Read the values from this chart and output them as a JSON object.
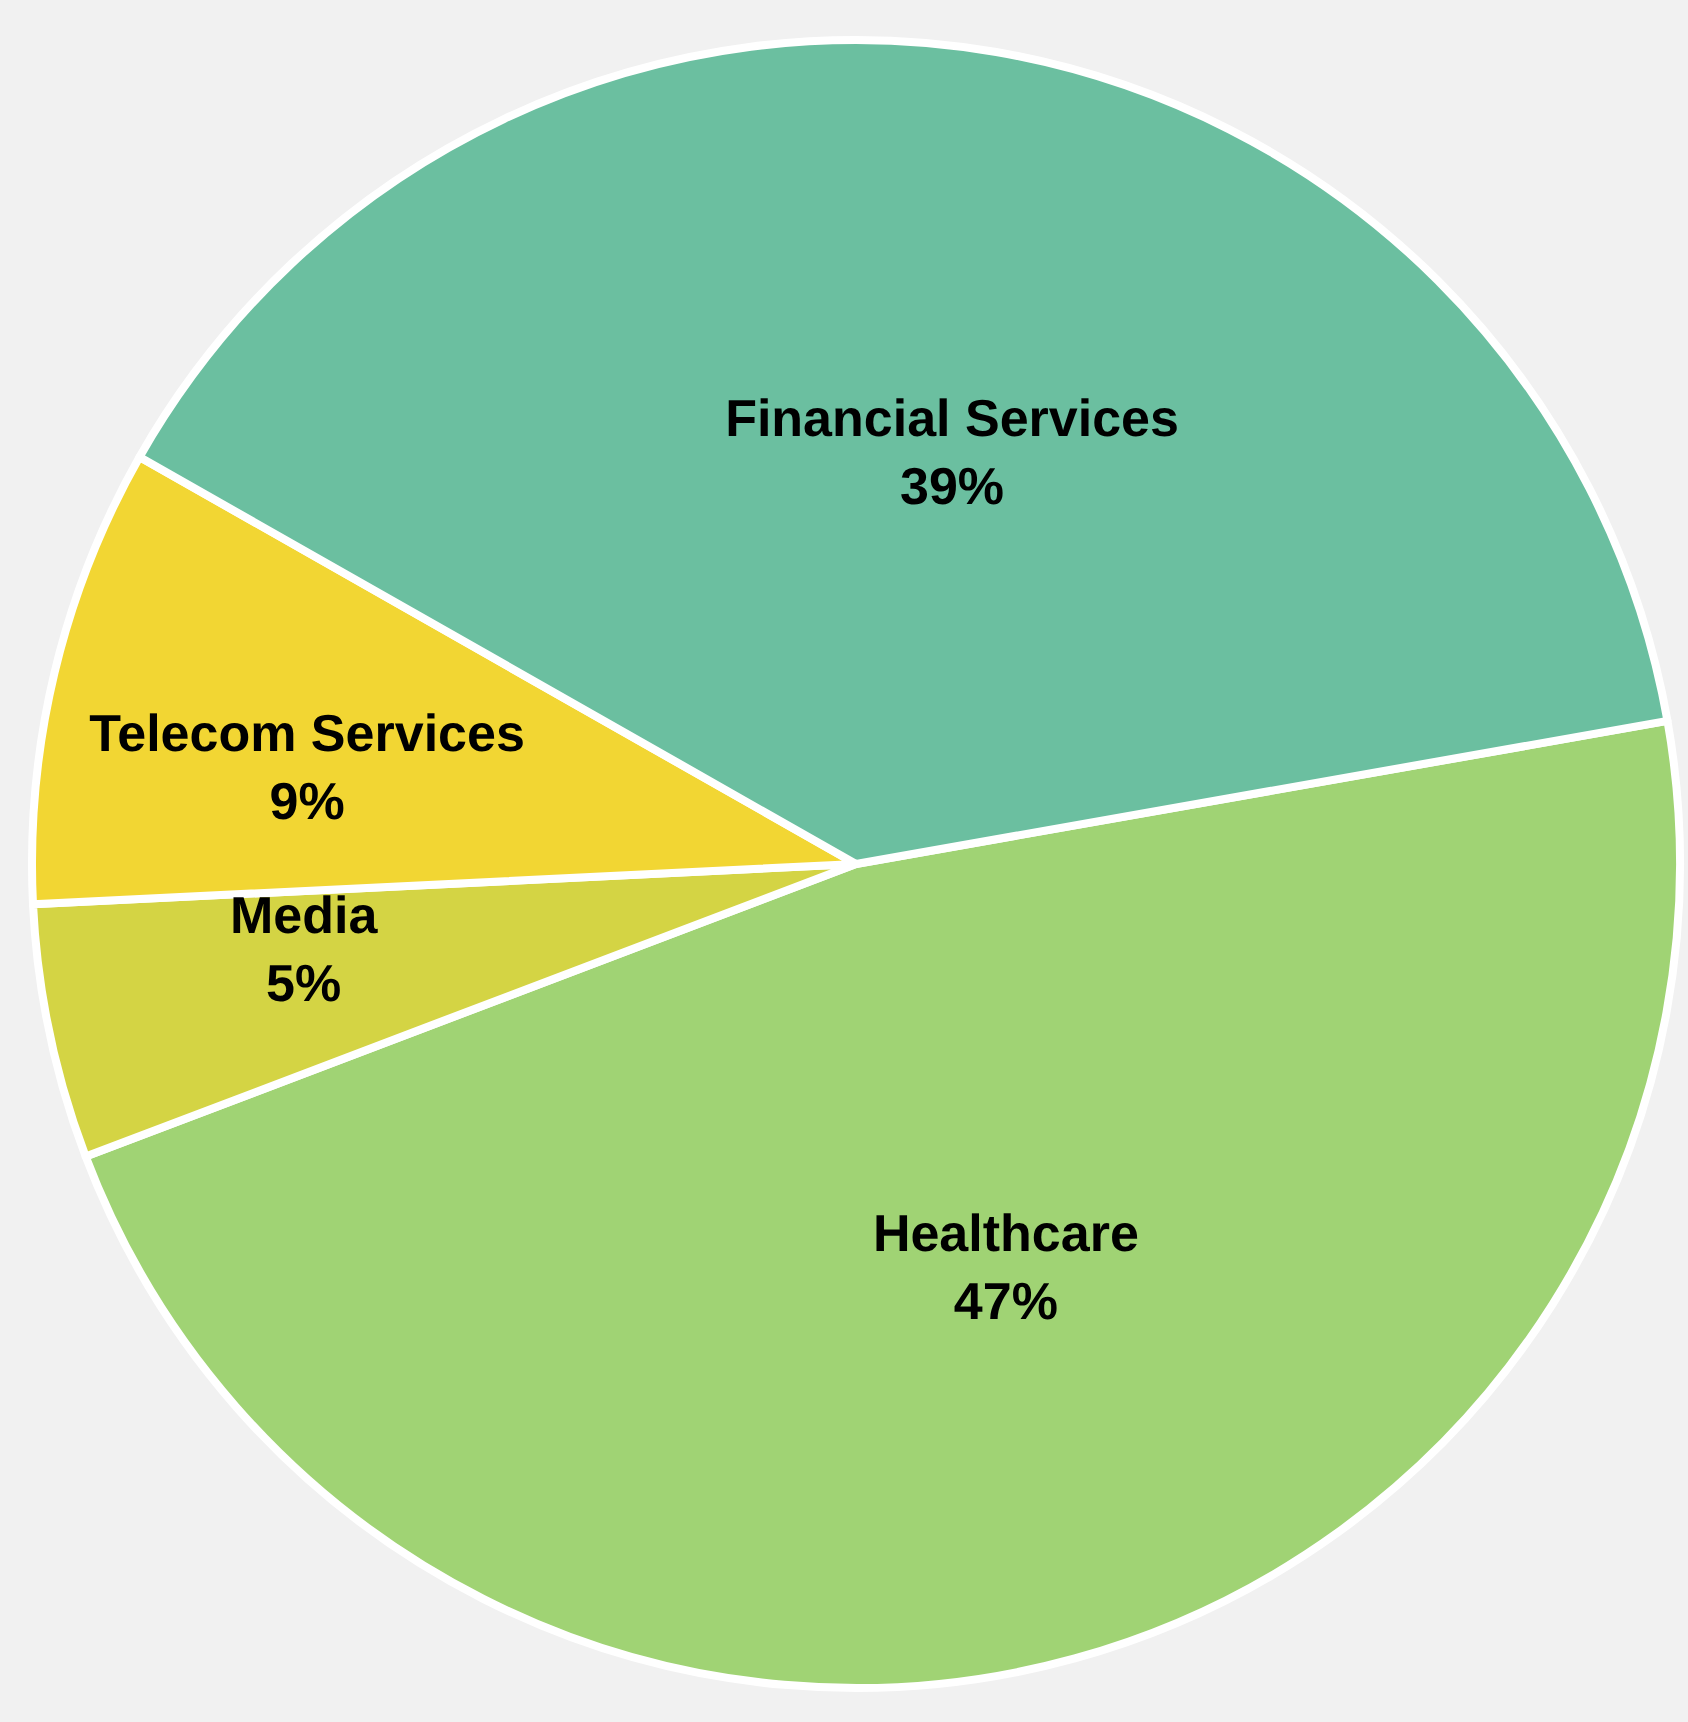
{
  "chart_data": {
    "type": "pie",
    "categories": [
      "Healthcare",
      "Media",
      "Telecom Services",
      "Financial Services"
    ],
    "values": [
      47,
      5,
      9,
      39
    ],
    "colors": [
      "#a0d374",
      "#d4d444",
      "#f2d633",
      "#6bbfa0"
    ],
    "value_labels": [
      "47%",
      "5%",
      "9%",
      "39%"
    ],
    "legend": false
  }
}
